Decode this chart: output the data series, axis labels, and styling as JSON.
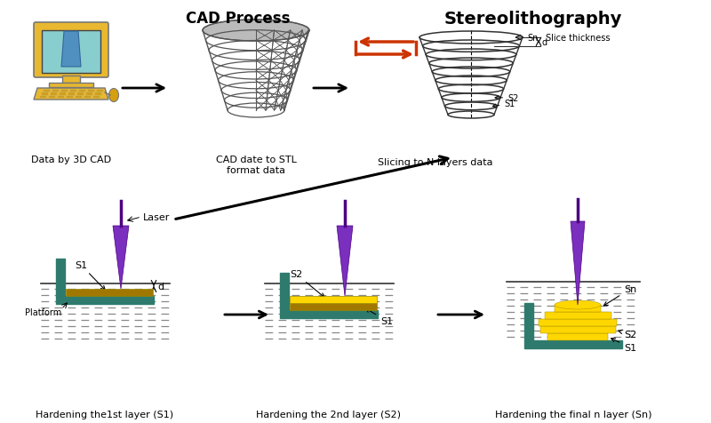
{
  "bg_color": "#ffffff",
  "top_label1": "CAD Process",
  "top_label2": "Stereolithography",
  "bottom_labels": [
    "Hardening the1st layer (S1)",
    "Hardening the 2nd layer (S2)",
    "Hardening the final n layer (Sn)"
  ],
  "caption1": "Data by 3D CAD",
  "caption2": "CAD date to STL\nformat data",
  "caption3": "Slicing to N layers data",
  "teal_color": "#2E7B6E",
  "yellow_color": "#DAA000",
  "bright_yellow": "#FFD700",
  "purple_color": "#7B2FBE",
  "purple_dark": "#4B0082",
  "arrow_color": "#000000",
  "red_arrow_color": "#CC3300",
  "comp_body": "#E8B830",
  "comp_screen": "#89CECE",
  "mesh_color": "#555555",
  "liquid_color": "#888888",
  "text_color": "#000000",
  "fig_w": 8.0,
  "fig_h": 4.77,
  "dpi": 100
}
